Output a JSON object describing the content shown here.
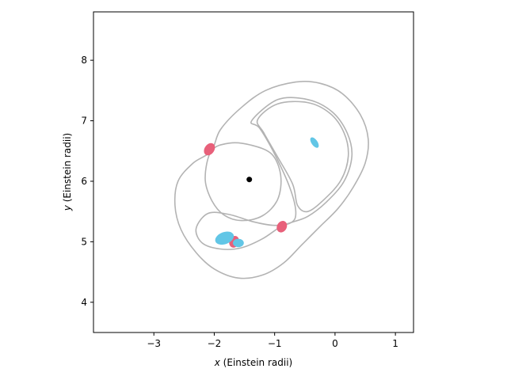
{
  "chart_data": {
    "type": "scatter",
    "title": "",
    "xlabel": {
      "var": "x",
      "unit": " (Einstein radii)"
    },
    "ylabel": {
      "var": "y",
      "unit": " (Einstein radii)"
    },
    "xlim": [
      -4.0,
      1.3
    ],
    "ylim": [
      3.5,
      8.8
    ],
    "xticks": [
      -3,
      -2,
      -1,
      0,
      1
    ],
    "yticks": [
      4,
      5,
      6,
      7,
      8
    ],
    "xtick_labels": [
      "−3",
      "−2",
      "−1",
      "0",
      "1"
    ],
    "ytick_labels": [
      "4",
      "5",
      "6",
      "7",
      "8"
    ],
    "grid": false,
    "colors": {
      "curves": "#b3b3b3",
      "images_red": "#e8607a",
      "images_blue": "#62c6e6",
      "lens": "#000000"
    },
    "lens": {
      "x": -1.42,
      "y": 6.03
    },
    "curves": [
      {
        "name": "outer_caustic",
        "points": [
          [
            -2.05,
            6.5
          ],
          [
            -1.9,
            6.85
          ],
          [
            -1.55,
            7.22
          ],
          [
            -1.15,
            7.5
          ],
          [
            -0.65,
            7.64
          ],
          [
            -0.25,
            7.62
          ],
          [
            0.12,
            7.45
          ],
          [
            0.42,
            7.1
          ],
          [
            0.55,
            6.7
          ],
          [
            0.5,
            6.3
          ],
          [
            0.3,
            5.9
          ],
          [
            0.05,
            5.55
          ],
          [
            -0.25,
            5.25
          ],
          [
            -0.55,
            4.95
          ],
          [
            -0.85,
            4.65
          ],
          [
            -1.2,
            4.45
          ],
          [
            -1.6,
            4.4
          ],
          [
            -2.0,
            4.55
          ],
          [
            -2.3,
            4.82
          ],
          [
            -2.55,
            5.2
          ],
          [
            -2.65,
            5.6
          ],
          [
            -2.6,
            6.0
          ],
          [
            -2.35,
            6.3
          ],
          [
            -2.05,
            6.5
          ]
        ]
      },
      {
        "name": "inner_loop_1",
        "points": [
          [
            -1.38,
            7.0
          ],
          [
            -0.95,
            7.35
          ],
          [
            -0.45,
            7.35
          ],
          [
            -0.05,
            7.15
          ],
          [
            0.2,
            6.8
          ],
          [
            0.28,
            6.42
          ],
          [
            0.15,
            6.0
          ],
          [
            -0.15,
            5.65
          ],
          [
            -0.45,
            5.42
          ],
          [
            -0.72,
            5.32
          ],
          [
            -0.9,
            5.25
          ],
          [
            -1.2,
            5.05
          ],
          [
            -1.55,
            4.9
          ],
          [
            -1.9,
            4.88
          ],
          [
            -2.2,
            4.98
          ],
          [
            -2.3,
            5.22
          ],
          [
            -2.1,
            5.47
          ],
          [
            -1.75,
            5.45
          ],
          [
            -1.35,
            5.33
          ],
          [
            -1.0,
            5.27
          ],
          [
            -0.72,
            5.32
          ],
          [
            -0.65,
            5.5
          ],
          [
            -0.75,
            5.9
          ],
          [
            -1.0,
            6.45
          ],
          [
            -1.25,
            6.88
          ],
          [
            -1.38,
            7.0
          ]
        ]
      },
      {
        "name": "inner_loop_2",
        "points": [
          [
            -1.28,
            7.02
          ],
          [
            -0.95,
            7.28
          ],
          [
            -0.45,
            7.3
          ],
          [
            -0.08,
            7.12
          ],
          [
            0.15,
            6.8
          ],
          [
            0.22,
            6.42
          ],
          [
            0.1,
            6.02
          ],
          [
            -0.18,
            5.7
          ],
          [
            -0.45,
            5.5
          ],
          [
            -0.62,
            5.6
          ],
          [
            -0.7,
            5.95
          ],
          [
            -0.95,
            6.4
          ],
          [
            -1.18,
            6.8
          ],
          [
            -1.28,
            7.02
          ]
        ]
      },
      {
        "name": "critical_curve",
        "points": [
          [
            -2.05,
            6.5
          ],
          [
            -1.75,
            6.63
          ],
          [
            -1.4,
            6.6
          ],
          [
            -1.05,
            6.45
          ],
          [
            -0.9,
            6.1
          ],
          [
            -0.95,
            5.7
          ],
          [
            -1.2,
            5.43
          ],
          [
            -1.55,
            5.35
          ],
          [
            -1.85,
            5.45
          ],
          [
            -2.05,
            5.7
          ],
          [
            -2.15,
            6.05
          ],
          [
            -2.05,
            6.5
          ]
        ]
      }
    ],
    "images": [
      {
        "color": "red",
        "x": -2.08,
        "y": 6.53,
        "rx": 0.08,
        "ry": 0.11,
        "angle": 35
      },
      {
        "color": "red",
        "x": -0.88,
        "y": 5.25,
        "rx": 0.08,
        "ry": 0.1,
        "angle": 30
      },
      {
        "color": "red",
        "x": -1.67,
        "y": 5.0,
        "rx": 0.08,
        "ry": 0.1,
        "angle": 20
      },
      {
        "color": "blue",
        "x": -0.34,
        "y": 6.64,
        "rx": 0.05,
        "ry": 0.1,
        "angle": -35
      },
      {
        "color": "blue",
        "x": -1.83,
        "y": 5.06,
        "rx": 0.16,
        "ry": 0.1,
        "angle": -20
      },
      {
        "color": "blue",
        "x": -1.6,
        "y": 4.98,
        "rx": 0.09,
        "ry": 0.07,
        "angle": 0
      }
    ]
  }
}
